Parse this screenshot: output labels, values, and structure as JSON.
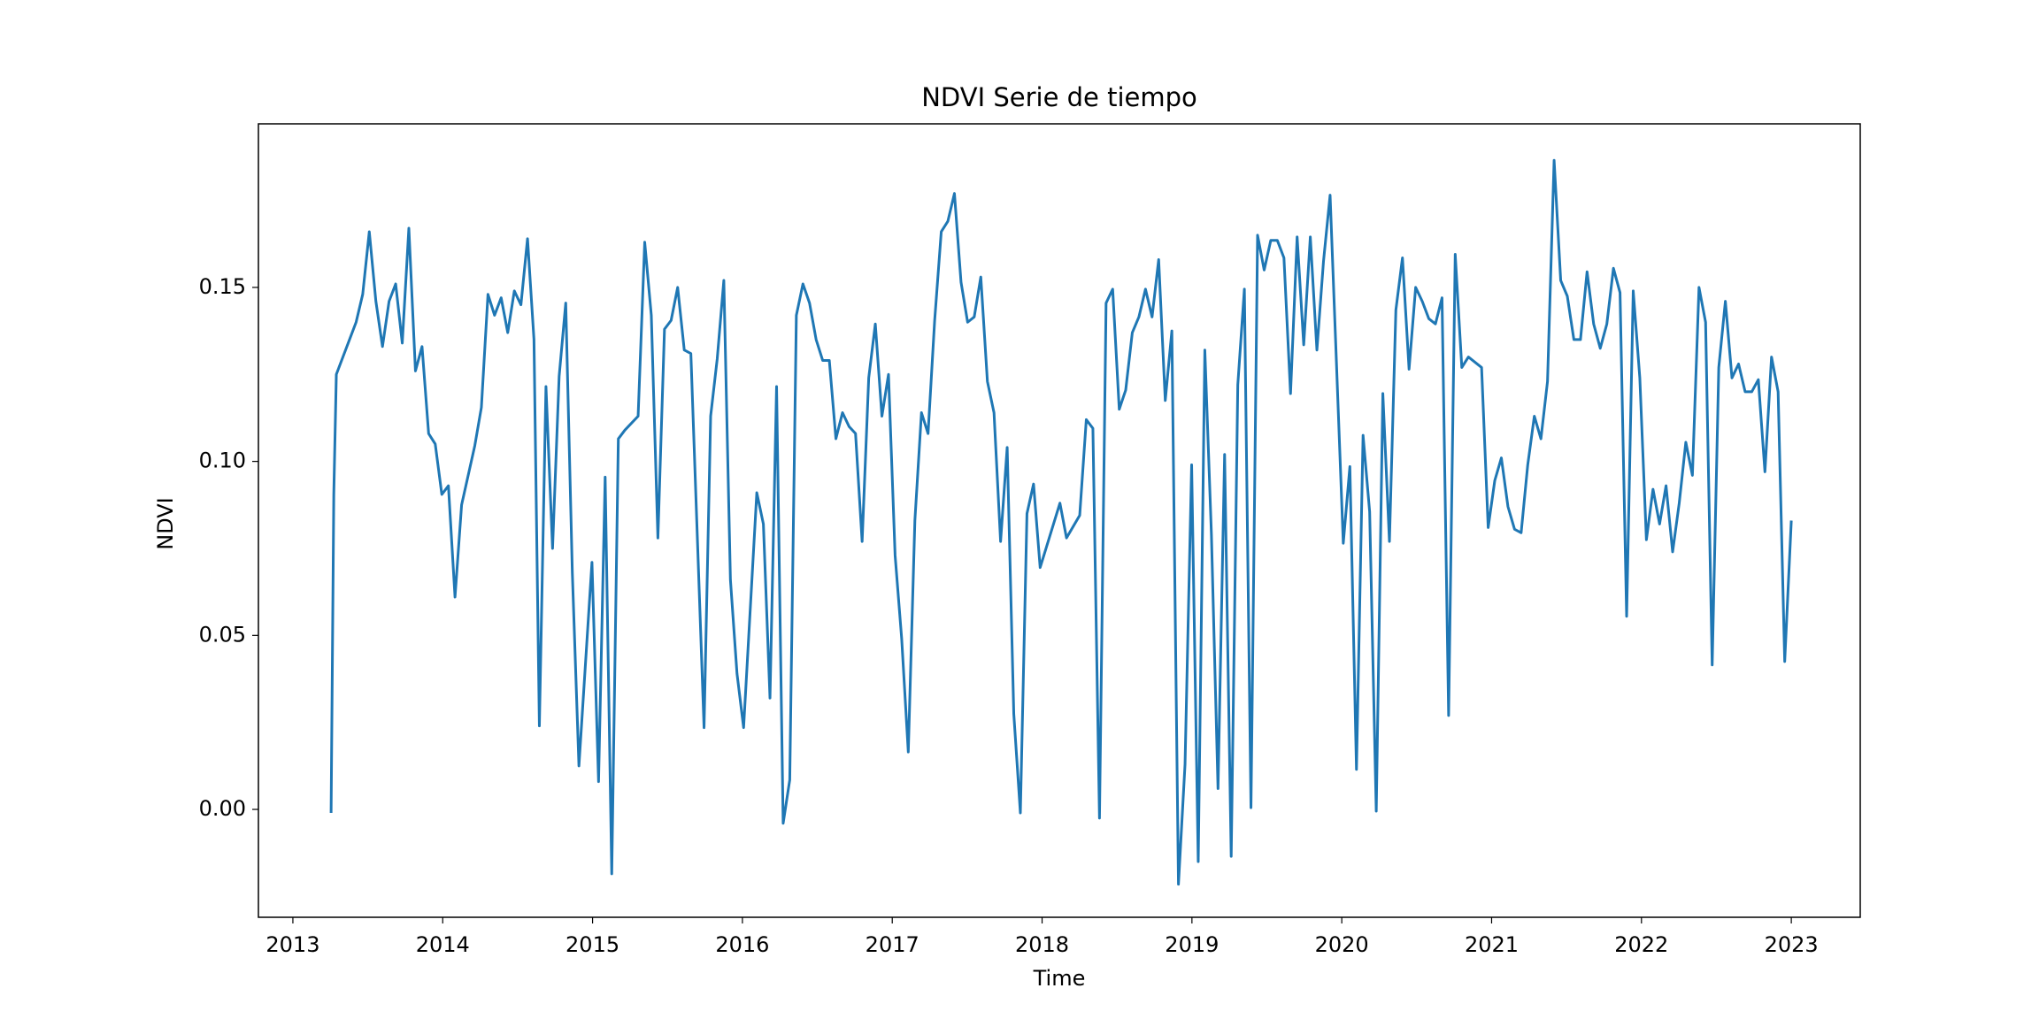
{
  "chart_data": {
    "type": "line",
    "title": "NDVI Serie de tiempo",
    "xlabel": "Time",
    "ylabel": "NDVI",
    "xlim": [
      2012.77,
      2023.46
    ],
    "ylim": [
      -0.031,
      0.197
    ],
    "xticks": [
      2013,
      2014,
      2015,
      2016,
      2017,
      2018,
      2019,
      2020,
      2021,
      2022,
      2023
    ],
    "yticks": [
      {
        "value": 0,
        "label": "0.00"
      },
      {
        "value": 0.05,
        "label": "0.05"
      },
      {
        "value": 0.1,
        "label": "0.10"
      },
      {
        "value": 0.15,
        "label": "0.15"
      }
    ],
    "x": [
      2013.255,
      2013.273,
      2013.29,
      2013.422,
      2013.466,
      2013.51,
      2013.554,
      2013.598,
      2013.642,
      2013.686,
      2013.73,
      2013.774,
      2013.818,
      2013.862,
      2013.906,
      2013.95,
      2013.994,
      2014.038,
      2014.082,
      2014.126,
      2014.214,
      2014.258,
      2014.302,
      2014.346,
      2014.39,
      2014.434,
      2014.478,
      2014.522,
      2014.566,
      2014.609,
      2014.645,
      2014.689,
      2014.733,
      2014.777,
      2014.821,
      2014.865,
      2014.909,
      2014.996,
      2015.04,
      2015.084,
      2015.128,
      2015.172,
      2015.216,
      2015.304,
      2015.348,
      2015.392,
      2015.436,
      2015.48,
      2015.524,
      2015.568,
      2015.612,
      2015.656,
      2015.744,
      2015.788,
      2015.832,
      2015.876,
      2015.92,
      2015.964,
      2016.008,
      2016.096,
      2016.14,
      2016.184,
      2016.228,
      2016.272,
      2016.316,
      2016.36,
      2016.404,
      2016.448,
      2016.492,
      2016.536,
      2016.58,
      2016.624,
      2016.668,
      2016.712,
      2016.755,
      2016.799,
      2016.843,
      2016.887,
      2016.931,
      2016.975,
      2017.019,
      2017.063,
      2017.107,
      2017.151,
      2017.195,
      2017.239,
      2017.283,
      2017.327,
      2017.371,
      2017.415,
      2017.459,
      2017.503,
      2017.547,
      2017.591,
      2017.635,
      2017.679,
      2017.723,
      2017.767,
      2017.811,
      2017.855,
      2017.899,
      2017.943,
      2017.987,
      2018.119,
      2018.163,
      2018.251,
      2018.295,
      2018.339,
      2018.383,
      2018.427,
      2018.471,
      2018.515,
      2018.558,
      2018.602,
      2018.646,
      2018.69,
      2018.734,
      2018.778,
      2018.822,
      2018.866,
      2018.91,
      2018.954,
      2018.998,
      2019.042,
      2019.086,
      2019.13,
      2019.174,
      2019.218,
      2019.262,
      2019.306,
      2019.35,
      2019.394,
      2019.438,
      2019.482,
      2019.526,
      2019.57,
      2019.614,
      2019.658,
      2019.702,
      2019.746,
      2019.79,
      2019.834,
      2019.878,
      2019.922,
      2020.01,
      2020.054,
      2020.098,
      2020.142,
      2020.186,
      2020.23,
      2020.274,
      2020.318,
      2020.361,
      2020.405,
      2020.449,
      2020.493,
      2020.537,
      2020.581,
      2020.625,
      2020.669,
      2020.713,
      2020.757,
      2020.801,
      2020.845,
      2020.933,
      2020.977,
      2021.021,
      2021.065,
      2021.109,
      2021.153,
      2021.197,
      2021.241,
      2021.285,
      2021.329,
      2021.373,
      2021.417,
      2021.461,
      2021.505,
      2021.549,
      2021.593,
      2021.637,
      2021.681,
      2021.725,
      2021.769,
      2021.813,
      2021.857,
      2021.901,
      2021.945,
      2021.989,
      2022.033,
      2022.077,
      2022.121,
      2022.164,
      2022.208,
      2022.252,
      2022.296,
      2022.34,
      2022.384,
      2022.428,
      2022.472,
      2022.516,
      2022.56,
      2022.604,
      2022.648,
      2022.692,
      2022.736,
      2022.78,
      2022.824,
      2022.868,
      2022.912,
      2022.956,
      2023.0
    ],
    "series": [
      {
        "color": "#1f77b4",
        "values": [
          -0.001,
          0.0905,
          0.125,
          0.14,
          0.148,
          0.166,
          0.146,
          0.133,
          0.146,
          0.151,
          0.134,
          0.167,
          0.126,
          0.133,
          0.108,
          0.105,
          0.0905,
          0.093,
          0.061,
          0.0875,
          0.1045,
          0.1155,
          0.148,
          0.142,
          0.147,
          0.137,
          0.149,
          0.145,
          0.164,
          0.135,
          0.024,
          0.1215,
          0.075,
          0.1245,
          0.1455,
          0.068,
          0.0125,
          0.071,
          0.008,
          0.0955,
          -0.0185,
          0.1065,
          0.109,
          0.113,
          0.163,
          0.142,
          0.078,
          0.138,
          0.1405,
          0.15,
          0.132,
          0.131,
          0.0235,
          0.113,
          0.1295,
          0.152,
          0.066,
          0.039,
          0.0235,
          0.091,
          0.082,
          0.032,
          0.1215,
          -0.004,
          0.0085,
          0.142,
          0.151,
          0.1455,
          0.135,
          0.129,
          0.129,
          0.1065,
          0.114,
          0.11,
          0.108,
          0.077,
          0.124,
          0.1395,
          0.113,
          0.125,
          0.073,
          0.049,
          0.0165,
          0.083,
          0.114,
          0.108,
          0.1405,
          0.166,
          0.169,
          0.177,
          0.1515,
          0.14,
          0.1415,
          0.153,
          0.123,
          0.114,
          0.077,
          0.104,
          0.0275,
          -0.001,
          0.085,
          0.0935,
          0.0695,
          0.088,
          0.078,
          0.0845,
          0.112,
          0.1095,
          -0.0025,
          0.1455,
          0.1495,
          0.115,
          0.1205,
          0.137,
          0.1415,
          0.1495,
          0.1415,
          0.158,
          0.1175,
          0.1375,
          -0.0215,
          0.013,
          0.099,
          -0.015,
          0.132,
          0.079,
          0.006,
          0.102,
          -0.0135,
          0.122,
          0.1495,
          0.0005,
          0.165,
          0.155,
          0.1635,
          0.1635,
          0.1585,
          0.1195,
          0.1645,
          0.1335,
          0.1645,
          0.132,
          0.1575,
          0.1765,
          0.0765,
          0.0985,
          0.0115,
          0.1075,
          0.0855,
          -0.0005,
          0.1195,
          0.077,
          0.1435,
          0.1585,
          0.1265,
          0.15,
          0.146,
          0.141,
          0.1395,
          0.147,
          0.027,
          0.1595,
          0.127,
          0.13,
          0.127,
          0.081,
          0.0945,
          0.101,
          0.087,
          0.0805,
          0.0795,
          0.099,
          0.113,
          0.1065,
          0.123,
          0.1865,
          0.152,
          0.1475,
          0.135,
          0.135,
          0.1545,
          0.1395,
          0.1325,
          0.1395,
          0.1555,
          0.1485,
          0.0555,
          0.149,
          0.124,
          0.0775,
          0.092,
          0.082,
          0.093,
          0.074,
          0.088,
          0.1055,
          0.096,
          0.15,
          0.14,
          0.0415,
          0.127,
          0.146,
          0.124,
          0.128,
          0.12,
          0.12,
          0.1235,
          0.097,
          0.13,
          0.12,
          0.0425,
          0.083
        ]
      }
    ]
  }
}
